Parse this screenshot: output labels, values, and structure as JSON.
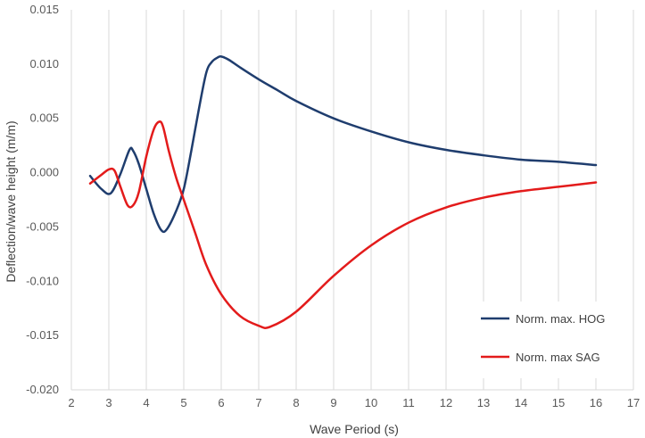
{
  "chart_data": {
    "type": "line",
    "title": "",
    "xlabel": "Wave Period (s)",
    "ylabel": "Deflection/wave height  (m/m)",
    "xlim": [
      2,
      17
    ],
    "ylim": [
      -0.02,
      0.015
    ],
    "xticks": [
      "2",
      "3",
      "4",
      "5",
      "6",
      "7",
      "8",
      "9",
      "10",
      "11",
      "12",
      "13",
      "14",
      "15",
      "16",
      "17"
    ],
    "yticks": [
      "-0.020",
      "-0.015",
      "-0.010",
      "-0.005",
      "0.000",
      "0.005",
      "0.010",
      "0.015"
    ],
    "grid": "vertical",
    "legend_position": "bottom-right",
    "series": [
      {
        "name": "Norm. max. HOG",
        "color": "#1f3d6e",
        "x": [
          2.5,
          2.8,
          3.05,
          3.3,
          3.55,
          3.65,
          3.8,
          4.0,
          4.2,
          4.4,
          4.55,
          4.8,
          5.0,
          5.2,
          5.4,
          5.6,
          5.75,
          5.9,
          6.0,
          6.2,
          6.5,
          7.0,
          7.5,
          8.0,
          9.0,
          10.0,
          11.0,
          12.0,
          13.0,
          14.0,
          15.0,
          16.0
        ],
        "y": [
          -0.0003,
          -0.0015,
          -0.0019,
          -0.0002,
          0.0021,
          0.002,
          0.0008,
          -0.0015,
          -0.0038,
          -0.0053,
          -0.0052,
          -0.0035,
          -0.0015,
          0.002,
          0.0058,
          0.0092,
          0.0102,
          0.0106,
          0.0107,
          0.0104,
          0.0097,
          0.0086,
          0.0076,
          0.0066,
          0.005,
          0.0038,
          0.0028,
          0.0021,
          0.0016,
          0.0012,
          0.001,
          0.0007
        ]
      },
      {
        "name": "Norm. max SAG",
        "color": "#e31b1b",
        "x": [
          2.5,
          2.8,
          3.0,
          3.15,
          3.3,
          3.5,
          3.65,
          3.8,
          4.0,
          4.2,
          4.35,
          4.45,
          4.6,
          4.8,
          5.0,
          5.3,
          5.6,
          6.0,
          6.5,
          7.0,
          7.3,
          8.0,
          9.0,
          10.0,
          11.0,
          12.0,
          13.0,
          14.0,
          15.0,
          16.0
        ],
        "y": [
          -0.001,
          -0.0002,
          0.0003,
          0.0002,
          -0.0012,
          -0.003,
          -0.003,
          -0.0018,
          0.0015,
          0.004,
          0.0047,
          0.0042,
          0.002,
          -0.0005,
          -0.0025,
          -0.0055,
          -0.0085,
          -0.0112,
          -0.0132,
          -0.0141,
          -0.0142,
          -0.0128,
          -0.0095,
          -0.0067,
          -0.0046,
          -0.0032,
          -0.0023,
          -0.0017,
          -0.0013,
          -0.0009
        ]
      }
    ]
  }
}
